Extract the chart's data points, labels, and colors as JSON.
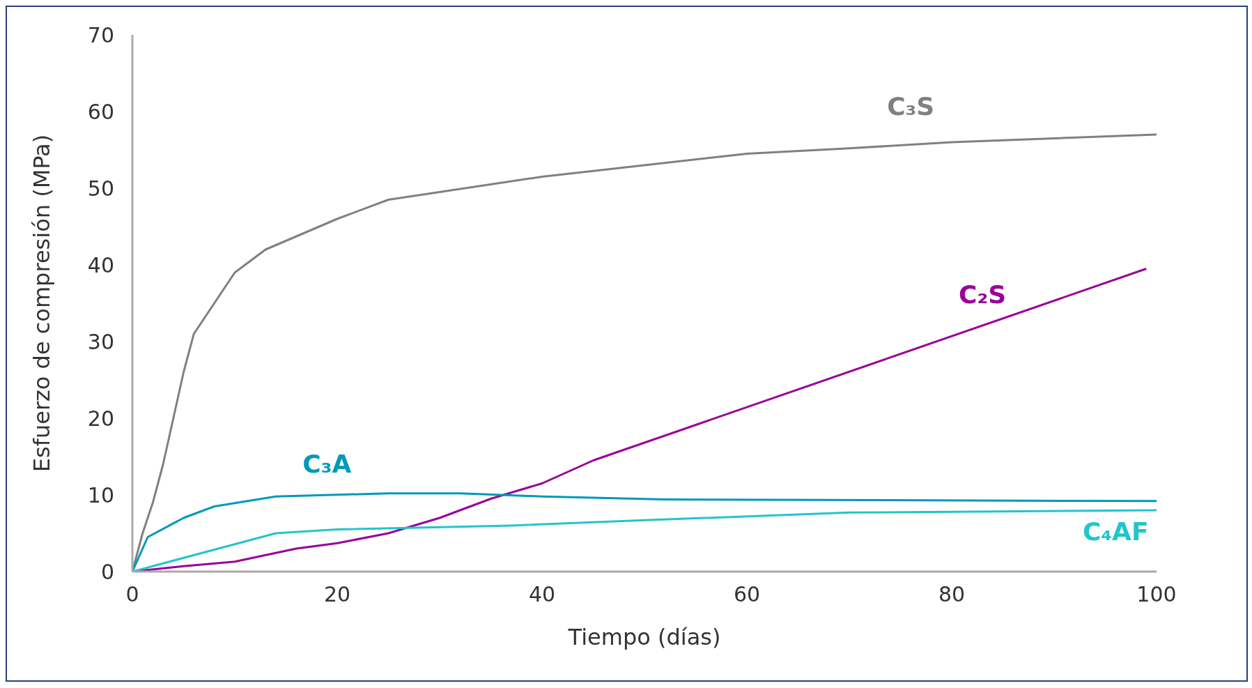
{
  "chart_data": {
    "type": "line",
    "xlabel": "Tiempo (días)",
    "ylabel": "Esfuerzo de compresión (MPa)",
    "xlim": [
      0,
      100
    ],
    "xticks": [
      0,
      20,
      40,
      60,
      80,
      100
    ],
    "ylim": [
      0,
      70
    ],
    "yticks": [
      0,
      10,
      20,
      30,
      40,
      50,
      60,
      70
    ],
    "marker": "none",
    "line_style": "solid",
    "series": [
      {
        "name": "C₃S",
        "color": "#808080",
        "x": [
          0,
          1,
          2,
          3,
          4,
          5,
          6,
          8,
          10,
          13,
          20,
          25,
          30,
          40,
          50,
          60,
          70,
          80,
          90,
          100
        ],
        "values": [
          0,
          5,
          9,
          14,
          20,
          26,
          31,
          35,
          39,
          42,
          46,
          48.5,
          49.5,
          51.5,
          53,
          54.5,
          55.2,
          56,
          56.5,
          57
        ]
      },
      {
        "name": "C₂S",
        "color": "#990099",
        "x": [
          0,
          5,
          10,
          16,
          20,
          25,
          30,
          35,
          40,
          45,
          99
        ],
        "values": [
          0,
          0.7,
          1.3,
          3,
          3.7,
          5,
          7,
          9.5,
          11.5,
          14.5,
          39.5
        ]
      },
      {
        "name": "C₃A",
        "color": "#0099bb",
        "x": [
          0,
          1.5,
          5,
          8,
          14,
          25,
          32,
          40,
          52,
          100
        ],
        "values": [
          0,
          4.5,
          7,
          8.5,
          9.8,
          10.2,
          10.2,
          9.8,
          9.4,
          9.2
        ]
      },
      {
        "name": "C₄AF",
        "color": "#22c5cc",
        "x": [
          0,
          14,
          20,
          37,
          50,
          70,
          80,
          100
        ],
        "values": [
          0,
          5,
          5.5,
          6,
          6.7,
          7.7,
          7.8,
          8
        ]
      }
    ]
  }
}
